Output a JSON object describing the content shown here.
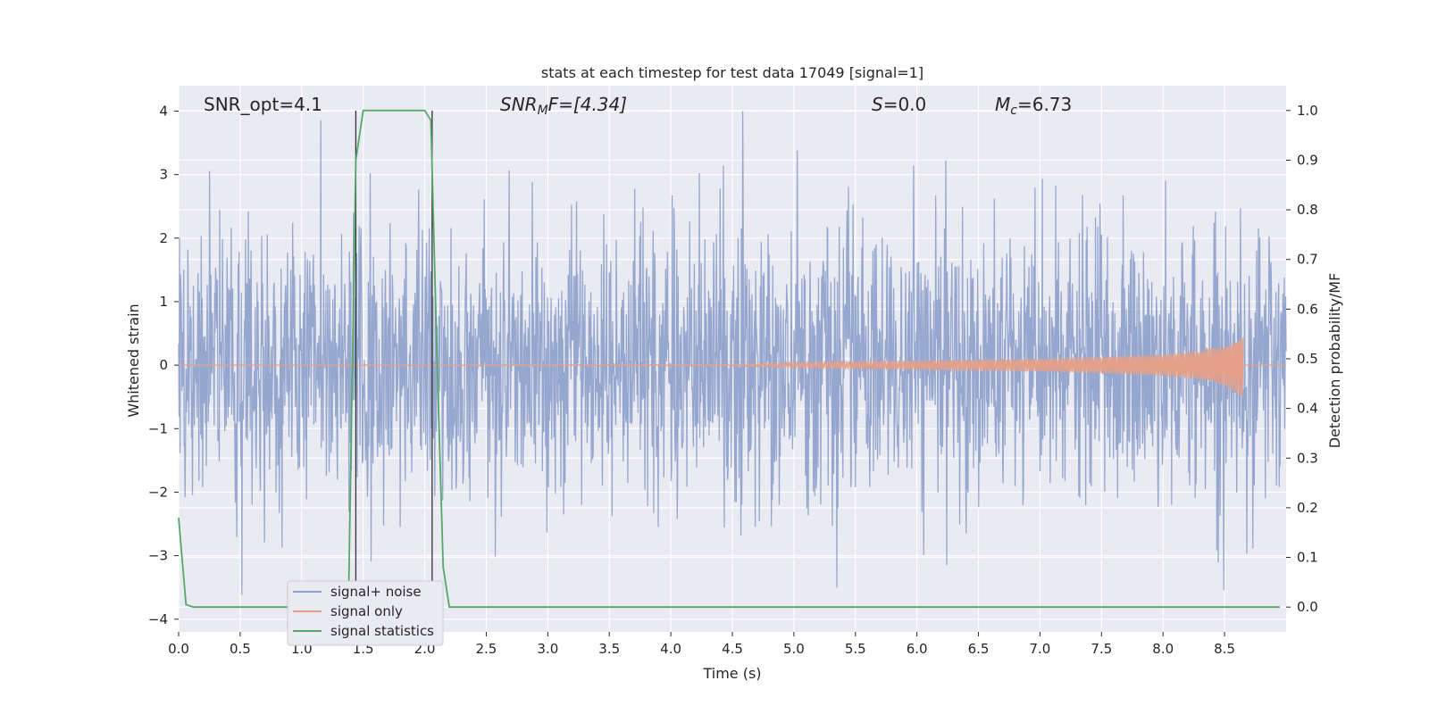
{
  "chart_data": {
    "type": "line",
    "title": "stats at each timestep for test data 17049 [signal=1]",
    "xlabel": "Time (s)",
    "ylabel": "Whitened strain",
    "ylabel_right": "Detection probability/MF",
    "xlim": [
      0.0,
      9.0
    ],
    "ylim": [
      -4.2,
      4.4
    ],
    "ylim_right": [
      -0.05,
      1.05
    ],
    "xticks": [
      "0.0",
      "0.5",
      "1.0",
      "1.5",
      "2.0",
      "2.5",
      "3.0",
      "3.5",
      "4.0",
      "4.5",
      "5.0",
      "5.5",
      "6.0",
      "6.5",
      "7.0",
      "7.5",
      "8.0",
      "8.5"
    ],
    "yticks": [
      "4",
      "3",
      "2",
      "1",
      "0",
      "−1",
      "−2",
      "−3",
      "−4"
    ],
    "yticks_right": [
      "1.0",
      "0.9",
      "0.8",
      "0.7",
      "0.6",
      "0.5",
      "0.4",
      "0.3",
      "0.2",
      "0.1",
      "0.0"
    ],
    "grid": true,
    "legend_position": "lower-left",
    "annotations": {
      "snr_opt": "SNR_opt=4.1",
      "snr_mf_main": "SNR",
      "snr_mf_sub": "M",
      "snr_mf_tail": "F=[4.34]",
      "s_main": "S",
      "s_tail": "=0.0",
      "mc_main": "M",
      "mc_sub": "c",
      "mc_tail": "=6.73"
    },
    "vertical_markers_x": [
      1.44,
      2.06
    ],
    "series": [
      {
        "name": "signal+ noise",
        "color": "#8da0cb",
        "description": "whitened strain noise, roughly Gaussian with std ~1 and peaks to about ±4",
        "amplitude_envelope": {
          "typical_max": 2.3,
          "peak_max": 4.0,
          "typical_min": -2.3,
          "peak_min": -3.9
        }
      },
      {
        "name": "signal only",
        "color": "#e5a08a",
        "description": "chirp signal, near zero until ~4.5 s, amplitude grows to ~0.5 at merger ~8.65 s",
        "x": [
          0.0,
          4.5,
          5.0,
          6.0,
          7.0,
          7.5,
          8.0,
          8.3,
          8.5,
          8.65
        ],
        "envelope": [
          0.0,
          0.01,
          0.04,
          0.07,
          0.1,
          0.13,
          0.17,
          0.23,
          0.32,
          0.5
        ]
      },
      {
        "name": "signal statistics",
        "color": "#55a868",
        "x": [
          0.0,
          0.06,
          0.12,
          1.38,
          1.44,
          1.5,
          2.0,
          2.05,
          2.1,
          2.15,
          2.2,
          8.95
        ],
        "values": [
          0.18,
          0.005,
          0.0,
          0.0,
          0.9,
          1.0,
          1.0,
          0.98,
          0.5,
          0.08,
          0.0,
          0.0
        ]
      }
    ]
  }
}
